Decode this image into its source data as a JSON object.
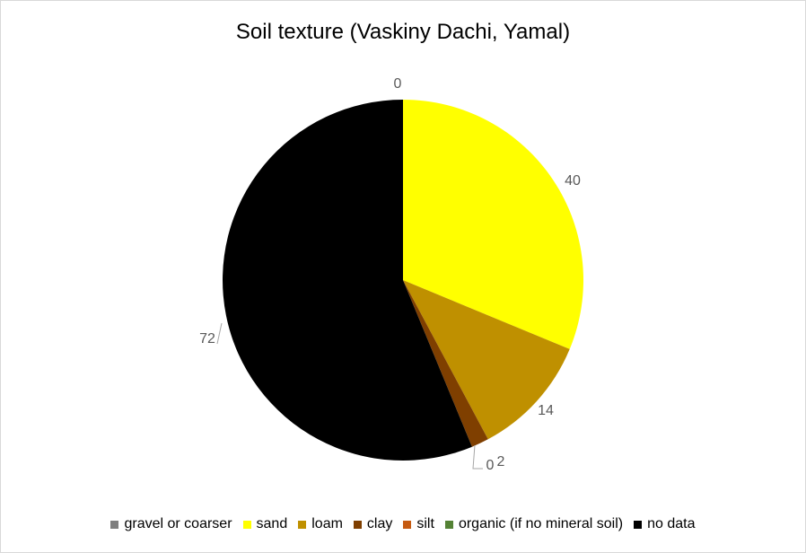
{
  "chart_data": {
    "type": "pie",
    "title": "Soil texture (Vaskiny Dachi, Yamal)",
    "categories": [
      "gravel or coarser",
      "sand",
      "loam",
      "clay",
      "silt",
      "organic (if no mineral soil)",
      "no data"
    ],
    "values": [
      0,
      40,
      14,
      2,
      0,
      0,
      72
    ],
    "data_labels": [
      "0",
      "40",
      "14",
      "2",
      "0",
      "",
      "72"
    ],
    "colors": [
      "#7f7f7f",
      "#ffff00",
      "#bf9000",
      "#7f3f00",
      "#c55a11",
      "#548235",
      "#000000"
    ],
    "legend_position": "bottom"
  }
}
